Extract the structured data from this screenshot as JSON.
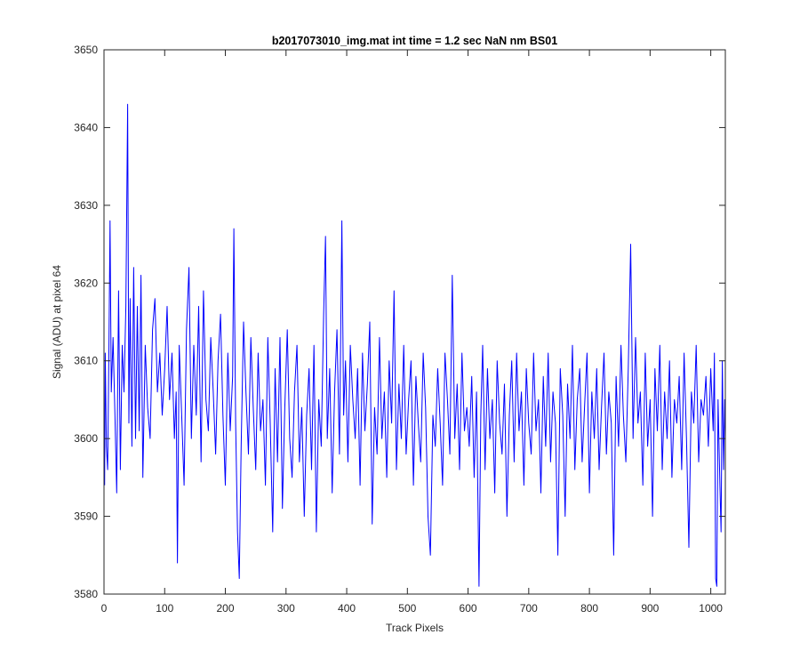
{
  "chart_data": {
    "type": "line",
    "title": "b2017073010_img.mat int time = 1.2 sec  NaN nm BS01",
    "xlabel": "Track Pixels",
    "ylabel": "Signal (ADU) at pixel 64",
    "xlim": [
      0,
      1024
    ],
    "ylim": [
      3580,
      3650
    ],
    "xticks": [
      0,
      100,
      200,
      300,
      400,
      500,
      600,
      700,
      800,
      900,
      1000
    ],
    "yticks": [
      3580,
      3590,
      3600,
      3610,
      3620,
      3630,
      3640,
      3650
    ],
    "grid": false,
    "series": [
      {
        "line_color": "#0000ff",
        "x_start": 1,
        "x_step": 1,
        "approximate_points": [
          [
            1,
            3594
          ],
          [
            2,
            3611
          ],
          [
            4,
            3599
          ],
          [
            6,
            3596
          ],
          [
            8,
            3611
          ],
          [
            10,
            3628
          ],
          [
            12,
            3606
          ],
          [
            15,
            3613
          ],
          [
            18,
            3603
          ],
          [
            21,
            3593
          ],
          [
            24,
            3619
          ],
          [
            27,
            3596
          ],
          [
            30,
            3612
          ],
          [
            33,
            3606
          ],
          [
            36,
            3617
          ],
          [
            39,
            3643
          ],
          [
            41,
            3602
          ],
          [
            43,
            3618
          ],
          [
            46,
            3599
          ],
          [
            49,
            3622
          ],
          [
            52,
            3600
          ],
          [
            55,
            3617
          ],
          [
            58,
            3601
          ],
          [
            61,
            3621
          ],
          [
            64,
            3595
          ],
          [
            68,
            3612
          ],
          [
            72,
            3604
          ],
          [
            76,
            3600
          ],
          [
            80,
            3614
          ],
          [
            84,
            3618
          ],
          [
            88,
            3606
          ],
          [
            92,
            3611
          ],
          [
            96,
            3603
          ],
          [
            100,
            3609
          ],
          [
            104,
            3617
          ],
          [
            108,
            3605
          ],
          [
            112,
            3611
          ],
          [
            116,
            3600
          ],
          [
            119,
            3606
          ],
          [
            121,
            3584
          ],
          [
            124,
            3612
          ],
          [
            128,
            3603
          ],
          [
            132,
            3594
          ],
          [
            136,
            3614
          ],
          [
            140,
            3622
          ],
          [
            144,
            3600
          ],
          [
            148,
            3612
          ],
          [
            152,
            3603
          ],
          [
            156,
            3617
          ],
          [
            160,
            3597
          ],
          [
            164,
            3619
          ],
          [
            168,
            3605
          ],
          [
            172,
            3601
          ],
          [
            176,
            3613
          ],
          [
            180,
            3606
          ],
          [
            184,
            3598
          ],
          [
            188,
            3610
          ],
          [
            192,
            3616
          ],
          [
            196,
            3603
          ],
          [
            200,
            3594
          ],
          [
            204,
            3611
          ],
          [
            208,
            3601
          ],
          [
            212,
            3608
          ],
          [
            214,
            3627
          ],
          [
            217,
            3602
          ],
          [
            220,
            3588
          ],
          [
            223,
            3582
          ],
          [
            226,
            3599
          ],
          [
            230,
            3615
          ],
          [
            234,
            3606
          ],
          [
            238,
            3598
          ],
          [
            242,
            3613
          ],
          [
            246,
            3604
          ],
          [
            250,
            3596
          ],
          [
            254,
            3611
          ],
          [
            258,
            3601
          ],
          [
            262,
            3605
          ],
          [
            266,
            3594
          ],
          [
            270,
            3613
          ],
          [
            274,
            3602
          ],
          [
            278,
            3588
          ],
          [
            282,
            3609
          ],
          [
            286,
            3597
          ],
          [
            290,
            3613
          ],
          [
            294,
            3591
          ],
          [
            298,
            3604
          ],
          [
            302,
            3614
          ],
          [
            306,
            3600
          ],
          [
            310,
            3595
          ],
          [
            314,
            3606
          ],
          [
            318,
            3612
          ],
          [
            322,
            3597
          ],
          [
            326,
            3604
          ],
          [
            330,
            3590
          ],
          [
            334,
            3603
          ],
          [
            338,
            3609
          ],
          [
            342,
            3596
          ],
          [
            346,
            3612
          ],
          [
            350,
            3588
          ],
          [
            354,
            3605
          ],
          [
            358,
            3599
          ],
          [
            362,
            3616
          ],
          [
            365,
            3626
          ],
          [
            368,
            3600
          ],
          [
            372,
            3609
          ],
          [
            376,
            3593
          ],
          [
            380,
            3606
          ],
          [
            384,
            3614
          ],
          [
            388,
            3598
          ],
          [
            392,
            3628
          ],
          [
            395,
            3603
          ],
          [
            398,
            3610
          ],
          [
            402,
            3597
          ],
          [
            406,
            3612
          ],
          [
            410,
            3605
          ],
          [
            414,
            3600
          ],
          [
            418,
            3609
          ],
          [
            422,
            3594
          ],
          [
            426,
            3611
          ],
          [
            430,
            3601
          ],
          [
            434,
            3607
          ],
          [
            438,
            3615
          ],
          [
            442,
            3589
          ],
          [
            446,
            3604
          ],
          [
            450,
            3598
          ],
          [
            454,
            3613
          ],
          [
            458,
            3600
          ],
          [
            462,
            3606
          ],
          [
            466,
            3595
          ],
          [
            470,
            3610
          ],
          [
            474,
            3602
          ],
          [
            478,
            3619
          ],
          [
            482,
            3596
          ],
          [
            486,
            3607
          ],
          [
            490,
            3600
          ],
          [
            494,
            3612
          ],
          [
            498,
            3598
          ],
          [
            502,
            3605
          ],
          [
            506,
            3610
          ],
          [
            510,
            3594
          ],
          [
            514,
            3608
          ],
          [
            518,
            3602
          ],
          [
            522,
            3597
          ],
          [
            526,
            3611
          ],
          [
            530,
            3604
          ],
          [
            534,
            3590
          ],
          [
            538,
            3585
          ],
          [
            542,
            3603
          ],
          [
            546,
            3599
          ],
          [
            550,
            3609
          ],
          [
            554,
            3602
          ],
          [
            558,
            3594
          ],
          [
            562,
            3611
          ],
          [
            566,
            3605
          ],
          [
            570,
            3598
          ],
          [
            574,
            3621
          ],
          [
            578,
            3600
          ],
          [
            582,
            3607
          ],
          [
            586,
            3596
          ],
          [
            590,
            3611
          ],
          [
            594,
            3601
          ],
          [
            598,
            3604
          ],
          [
            602,
            3599
          ],
          [
            606,
            3608
          ],
          [
            610,
            3595
          ],
          [
            614,
            3606
          ],
          [
            618,
            3581
          ],
          [
            621,
            3603
          ],
          [
            624,
            3612
          ],
          [
            628,
            3596
          ],
          [
            632,
            3609
          ],
          [
            636,
            3600
          ],
          [
            640,
            3605
          ],
          [
            644,
            3593
          ],
          [
            648,
            3610
          ],
          [
            652,
            3602
          ],
          [
            656,
            3598
          ],
          [
            660,
            3607
          ],
          [
            664,
            3590
          ],
          [
            668,
            3603
          ],
          [
            672,
            3610
          ],
          [
            676,
            3597
          ],
          [
            680,
            3611
          ],
          [
            684,
            3601
          ],
          [
            688,
            3606
          ],
          [
            692,
            3594
          ],
          [
            696,
            3609
          ],
          [
            700,
            3602
          ],
          [
            704,
            3598
          ],
          [
            708,
            3611
          ],
          [
            712,
            3601
          ],
          [
            716,
            3605
          ],
          [
            720,
            3593
          ],
          [
            724,
            3608
          ],
          [
            728,
            3599
          ],
          [
            732,
            3611
          ],
          [
            736,
            3597
          ],
          [
            740,
            3606
          ],
          [
            744,
            3602
          ],
          [
            748,
            3585
          ],
          [
            752,
            3609
          ],
          [
            756,
            3603
          ],
          [
            760,
            3590
          ],
          [
            764,
            3607
          ],
          [
            768,
            3600
          ],
          [
            772,
            3612
          ],
          [
            776,
            3596
          ],
          [
            780,
            3605
          ],
          [
            784,
            3609
          ],
          [
            788,
            3597
          ],
          [
            792,
            3604
          ],
          [
            796,
            3611
          ],
          [
            800,
            3593
          ],
          [
            804,
            3606
          ],
          [
            808,
            3600
          ],
          [
            812,
            3609
          ],
          [
            816,
            3596
          ],
          [
            820,
            3604
          ],
          [
            824,
            3611
          ],
          [
            828,
            3598
          ],
          [
            832,
            3606
          ],
          [
            836,
            3602
          ],
          [
            840,
            3585
          ],
          [
            844,
            3608
          ],
          [
            848,
            3599
          ],
          [
            852,
            3612
          ],
          [
            856,
            3603
          ],
          [
            860,
            3597
          ],
          [
            864,
            3609
          ],
          [
            868,
            3625
          ],
          [
            872,
            3600
          ],
          [
            876,
            3613
          ],
          [
            880,
            3602
          ],
          [
            884,
            3606
          ],
          [
            888,
            3594
          ],
          [
            892,
            3611
          ],
          [
            896,
            3599
          ],
          [
            900,
            3605
          ],
          [
            904,
            3590
          ],
          [
            908,
            3609
          ],
          [
            912,
            3601
          ],
          [
            916,
            3612
          ],
          [
            920,
            3596
          ],
          [
            924,
            3606
          ],
          [
            928,
            3600
          ],
          [
            932,
            3610
          ],
          [
            936,
            3595
          ],
          [
            940,
            3605
          ],
          [
            944,
            3602
          ],
          [
            948,
            3608
          ],
          [
            952,
            3596
          ],
          [
            956,
            3611
          ],
          [
            960,
            3600
          ],
          [
            964,
            3586
          ],
          [
            968,
            3606
          ],
          [
            972,
            3602
          ],
          [
            976,
            3612
          ],
          [
            980,
            3597
          ],
          [
            984,
            3605
          ],
          [
            988,
            3603
          ],
          [
            992,
            3608
          ],
          [
            996,
            3599
          ],
          [
            1000,
            3609
          ],
          [
            1004,
            3601
          ],
          [
            1006,
            3611
          ],
          [
            1008,
            3582
          ],
          [
            1010,
            3581
          ],
          [
            1012,
            3605
          ],
          [
            1015,
            3594
          ],
          [
            1017,
            3588
          ],
          [
            1019,
            3610
          ],
          [
            1021,
            3596
          ],
          [
            1023,
            3605
          ],
          [
            1024,
            3600
          ]
        ]
      }
    ]
  }
}
